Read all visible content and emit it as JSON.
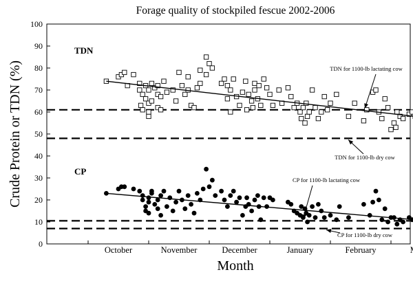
{
  "chart_data": {
    "type": "scatter",
    "title": "Forage quality of stockpiled fescue 2002-2006",
    "xlabel": "Month",
    "ylabel": "Crude Protein or TDN (%)",
    "ylim": [
      0,
      100
    ],
    "yticks": [
      0,
      10,
      20,
      30,
      40,
      50,
      60,
      70,
      80,
      90,
      100
    ],
    "xlim": [
      0,
      5.4
    ],
    "months": [
      "October",
      "November",
      "December",
      "January",
      "February",
      "March"
    ],
    "grid": false,
    "series": [
      {
        "name": "TDN",
        "marker": "open-square",
        "points": [
          [
            0.3,
            74
          ],
          [
            0.5,
            76
          ],
          [
            0.55,
            77
          ],
          [
            0.6,
            78
          ],
          [
            0.65,
            72
          ],
          [
            0.75,
            77
          ],
          [
            0.85,
            73
          ],
          [
            0.85,
            70
          ],
          [
            0.87,
            63
          ],
          [
            0.9,
            61
          ],
          [
            0.9,
            68
          ],
          [
            0.95,
            72
          ],
          [
            0.95,
            66
          ],
          [
            1.0,
            58
          ],
          [
            1.0,
            60
          ],
          [
            1.0,
            64
          ],
          [
            1.0,
            70
          ],
          [
            1.05,
            73
          ],
          [
            1.05,
            65
          ],
          [
            1.1,
            71
          ],
          [
            1.15,
            62
          ],
          [
            1.15,
            68
          ],
          [
            1.15,
            72
          ],
          [
            1.2,
            67
          ],
          [
            1.2,
            61
          ],
          [
            1.25,
            74
          ],
          [
            1.3,
            69
          ],
          [
            1.4,
            70
          ],
          [
            1.45,
            65
          ],
          [
            1.5,
            78
          ],
          [
            1.55,
            72
          ],
          [
            1.6,
            68
          ],
          [
            1.65,
            76
          ],
          [
            1.65,
            70
          ],
          [
            1.7,
            63
          ],
          [
            1.75,
            62
          ],
          [
            1.8,
            71
          ],
          [
            1.85,
            73
          ],
          [
            1.85,
            79
          ],
          [
            1.95,
            85
          ],
          [
            1.95,
            77
          ],
          [
            2.0,
            82
          ],
          [
            2.05,
            80
          ],
          [
            2.2,
            73
          ],
          [
            2.25,
            75
          ],
          [
            2.3,
            72
          ],
          [
            2.3,
            66
          ],
          [
            2.35,
            70
          ],
          [
            2.35,
            60
          ],
          [
            2.4,
            75
          ],
          [
            2.45,
            67
          ],
          [
            2.5,
            63
          ],
          [
            2.55,
            69
          ],
          [
            2.6,
            74
          ],
          [
            2.62,
            61
          ],
          [
            2.65,
            68
          ],
          [
            2.7,
            65
          ],
          [
            2.72,
            62
          ],
          [
            2.75,
            73
          ],
          [
            2.75,
            70
          ],
          [
            2.8,
            66
          ],
          [
            2.82,
            72
          ],
          [
            2.85,
            63
          ],
          [
            2.9,
            75
          ],
          [
            2.95,
            71
          ],
          [
            3.0,
            68
          ],
          [
            3.05,
            63
          ],
          [
            3.15,
            70
          ],
          [
            3.2,
            64
          ],
          [
            3.3,
            71
          ],
          [
            3.35,
            67
          ],
          [
            3.4,
            62
          ],
          [
            3.45,
            64
          ],
          [
            3.5,
            60
          ],
          [
            3.52,
            57
          ],
          [
            3.55,
            62
          ],
          [
            3.58,
            55
          ],
          [
            3.6,
            64
          ],
          [
            3.62,
            58
          ],
          [
            3.65,
            60
          ],
          [
            3.7,
            70
          ],
          [
            3.75,
            62
          ],
          [
            3.8,
            57
          ],
          [
            3.85,
            60
          ],
          [
            3.9,
            67
          ],
          [
            3.95,
            61
          ],
          [
            4.0,
            64
          ],
          [
            4.1,
            68
          ],
          [
            4.3,
            58
          ],
          [
            4.4,
            64
          ],
          [
            4.55,
            56
          ],
          [
            4.6,
            61
          ],
          [
            4.7,
            69
          ],
          [
            4.75,
            70
          ],
          [
            4.8,
            60
          ],
          [
            4.85,
            57
          ],
          [
            4.9,
            66
          ],
          [
            4.95,
            62
          ],
          [
            5.0,
            52
          ],
          [
            5.05,
            55
          ],
          [
            5.08,
            53
          ],
          [
            5.1,
            60
          ],
          [
            5.15,
            58
          ],
          [
            5.2,
            57
          ],
          [
            5.3,
            59
          ],
          [
            5.35,
            60
          ],
          [
            5.4,
            58
          ]
        ],
        "trend": [
          [
            0.3,
            74
          ],
          [
            5.4,
            58
          ]
        ]
      },
      {
        "name": "CP",
        "marker": "filled-circle",
        "points": [
          [
            0.3,
            23
          ],
          [
            0.5,
            25
          ],
          [
            0.55,
            26
          ],
          [
            0.6,
            26
          ],
          [
            0.75,
            25
          ],
          [
            0.85,
            24
          ],
          [
            0.9,
            22
          ],
          [
            0.9,
            20
          ],
          [
            0.95,
            17
          ],
          [
            0.95,
            15
          ],
          [
            1.0,
            21
          ],
          [
            1.0,
            19
          ],
          [
            1.0,
            14
          ],
          [
            1.05,
            23
          ],
          [
            1.05,
            24
          ],
          [
            1.1,
            18
          ],
          [
            1.15,
            16
          ],
          [
            1.15,
            20
          ],
          [
            1.2,
            13
          ],
          [
            1.2,
            22
          ],
          [
            1.25,
            24
          ],
          [
            1.3,
            17
          ],
          [
            1.35,
            21
          ],
          [
            1.4,
            15
          ],
          [
            1.45,
            19
          ],
          [
            1.5,
            24
          ],
          [
            1.55,
            20
          ],
          [
            1.6,
            16
          ],
          [
            1.65,
            22
          ],
          [
            1.7,
            18
          ],
          [
            1.75,
            14
          ],
          [
            1.8,
            23
          ],
          [
            1.85,
            20
          ],
          [
            1.9,
            25
          ],
          [
            1.95,
            34
          ],
          [
            2.0,
            26
          ],
          [
            2.05,
            29
          ],
          [
            2.1,
            22
          ],
          [
            2.2,
            24
          ],
          [
            2.25,
            20
          ],
          [
            2.3,
            17
          ],
          [
            2.35,
            22
          ],
          [
            2.4,
            24
          ],
          [
            2.45,
            19
          ],
          [
            2.5,
            21
          ],
          [
            2.55,
            13
          ],
          [
            2.6,
            17
          ],
          [
            2.62,
            21
          ],
          [
            2.65,
            18
          ],
          [
            2.7,
            15
          ],
          [
            2.75,
            20
          ],
          [
            2.8,
            22
          ],
          [
            2.82,
            17
          ],
          [
            2.85,
            11
          ],
          [
            2.9,
            21
          ],
          [
            2.95,
            17
          ],
          [
            3.0,
            21
          ],
          [
            3.05,
            20
          ],
          [
            3.3,
            19
          ],
          [
            3.35,
            18
          ],
          [
            3.4,
            15
          ],
          [
            3.45,
            14
          ],
          [
            3.5,
            13
          ],
          [
            3.52,
            17
          ],
          [
            3.55,
            12
          ],
          [
            3.58,
            16
          ],
          [
            3.6,
            14
          ],
          [
            3.62,
            10
          ],
          [
            3.65,
            13
          ],
          [
            3.7,
            17
          ],
          [
            3.75,
            12
          ],
          [
            3.8,
            18
          ],
          [
            3.85,
            15
          ],
          [
            3.9,
            12
          ],
          [
            4.0,
            13
          ],
          [
            4.1,
            11
          ],
          [
            4.15,
            17
          ],
          [
            4.3,
            12
          ],
          [
            4.55,
            18
          ],
          [
            4.65,
            13
          ],
          [
            4.7,
            19
          ],
          [
            4.75,
            24
          ],
          [
            4.8,
            20
          ],
          [
            4.85,
            11
          ],
          [
            4.9,
            16
          ],
          [
            4.95,
            10
          ],
          [
            5.0,
            12
          ],
          [
            5.05,
            12
          ],
          [
            5.1,
            9
          ],
          [
            5.15,
            11
          ],
          [
            5.2,
            10
          ],
          [
            5.3,
            12
          ],
          [
            5.35,
            11
          ],
          [
            5.4,
            12
          ]
        ],
        "trend": [
          [
            0.3,
            23
          ],
          [
            5.4,
            11
          ]
        ]
      }
    ],
    "reference_lines": [
      {
        "label": "TDN for 1100-lb lactating cow",
        "y": 61
      },
      {
        "label": "TDN for 1100-lb dry cow",
        "y": 48
      },
      {
        "label": "CP for 1100-lb lactating cow",
        "y": 10.5
      },
      {
        "label": "CP for 1100-lb dry cow",
        "y": 7
      }
    ]
  }
}
